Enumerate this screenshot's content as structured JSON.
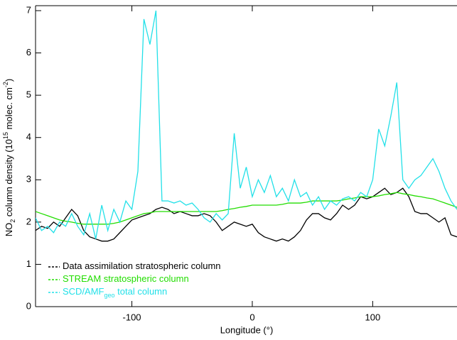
{
  "chart_data": {
    "type": "line",
    "xlabel": "Longitude (°)",
    "ylabel": [
      {
        "text": "NO"
      },
      {
        "text": "2",
        "sub": true
      },
      {
        "text": " column density (10"
      },
      {
        "text": "15",
        "sup": true
      },
      {
        "text": " molec. cm"
      },
      {
        "text": "-2",
        "sup": true
      },
      {
        "text": ")"
      }
    ],
    "xlim": [
      -180,
      170
    ],
    "ylim": [
      0,
      7
    ],
    "xticks": [
      -100,
      0,
      100
    ],
    "yticks": [
      0,
      1,
      2,
      3,
      4,
      5,
      6,
      7
    ],
    "legend": "lower left",
    "x": [
      -180,
      -175,
      -170,
      -165,
      -160,
      -155,
      -150,
      -145,
      -140,
      -135,
      -130,
      -125,
      -120,
      -115,
      -110,
      -105,
      -100,
      -95,
      -90,
      -85,
      -80,
      -75,
      -70,
      -65,
      -60,
      -55,
      -50,
      -45,
      -40,
      -35,
      -30,
      -25,
      -20,
      -15,
      -10,
      -5,
      0,
      5,
      10,
      15,
      20,
      25,
      30,
      35,
      40,
      45,
      50,
      55,
      60,
      65,
      70,
      75,
      80,
      85,
      90,
      95,
      100,
      105,
      110,
      115,
      120,
      125,
      130,
      135,
      140,
      145,
      150,
      155,
      160,
      165,
      170
    ],
    "series": [
      {
        "name": "Data assimilation stratospheric column",
        "color": "#000000",
        "values": [
          1.8,
          1.9,
          1.85,
          2.0,
          1.9,
          2.1,
          2.3,
          2.15,
          1.8,
          1.65,
          1.6,
          1.55,
          1.55,
          1.6,
          1.75,
          1.9,
          2.05,
          2.1,
          2.15,
          2.2,
          2.3,
          2.35,
          2.3,
          2.2,
          2.25,
          2.2,
          2.15,
          2.15,
          2.2,
          2.15,
          2.0,
          1.8,
          1.9,
          2.0,
          1.95,
          1.9,
          1.95,
          1.75,
          1.65,
          1.6,
          1.55,
          1.6,
          1.55,
          1.65,
          1.8,
          2.05,
          2.2,
          2.2,
          2.1,
          2.05,
          2.2,
          2.4,
          2.3,
          2.4,
          2.6,
          2.55,
          2.6,
          2.7,
          2.8,
          2.65,
          2.7,
          2.8,
          2.6,
          2.25,
          2.2,
          2.2,
          2.1,
          2.0,
          2.1,
          1.7,
          1.65
        ]
      },
      {
        "name": "STREAM stratospheric column",
        "color": "#22dd00",
        "values": [
          2.25,
          2.2,
          2.15,
          2.1,
          2.05,
          2.02,
          2.0,
          1.97,
          1.95,
          1.95,
          1.95,
          1.95,
          1.95,
          1.97,
          2.0,
          2.05,
          2.1,
          2.15,
          2.2,
          2.22,
          2.25,
          2.25,
          2.25,
          2.25,
          2.25,
          2.25,
          2.25,
          2.25,
          2.25,
          2.25,
          2.25,
          2.27,
          2.3,
          2.32,
          2.35,
          2.37,
          2.4,
          2.4,
          2.4,
          2.4,
          2.4,
          2.42,
          2.45,
          2.45,
          2.45,
          2.47,
          2.5,
          2.5,
          2.5,
          2.5,
          2.5,
          2.52,
          2.55,
          2.57,
          2.6,
          2.6,
          2.6,
          2.62,
          2.65,
          2.67,
          2.7,
          2.67,
          2.65,
          2.62,
          2.6,
          2.57,
          2.55,
          2.5,
          2.45,
          2.4,
          2.35
        ]
      },
      {
        "name": "SCD/AMF",
        "name_sub": "geo",
        "name_rest": " total column",
        "color": "#22e0e8",
        "values": [
          2.1,
          1.8,
          1.9,
          1.75,
          2.0,
          1.9,
          2.2,
          1.9,
          1.7,
          2.2,
          1.6,
          2.4,
          1.8,
          2.3,
          2.0,
          2.5,
          2.3,
          3.2,
          6.8,
          6.2,
          7.0,
          2.5,
          2.5,
          2.45,
          2.5,
          2.4,
          2.45,
          2.3,
          2.1,
          2.0,
          2.2,
          2.05,
          2.2,
          4.1,
          2.8,
          3.3,
          2.6,
          3.0,
          2.7,
          3.1,
          2.6,
          2.8,
          2.5,
          3.0,
          2.6,
          2.7,
          2.4,
          2.6,
          2.3,
          2.5,
          2.4,
          2.55,
          2.6,
          2.5,
          2.7,
          2.6,
          3.0,
          4.2,
          3.8,
          4.5,
          5.3,
          3.0,
          2.8,
          3.0,
          3.1,
          3.3,
          3.5,
          3.2,
          2.8,
          2.5,
          2.3
        ]
      }
    ]
  }
}
